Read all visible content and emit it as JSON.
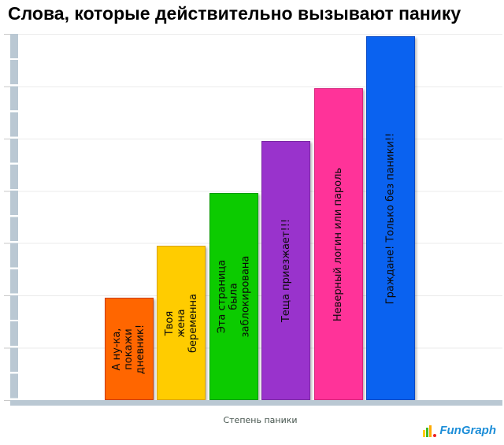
{
  "title": "Слова, которые действительно вызывают панику",
  "xlabel": "Степень паники",
  "logo": {
    "text": "FunGraph",
    "icon": "bar-chart-icon",
    "text_color": "#1d8ed8"
  },
  "palette": {
    "axis_wall": "#bac8d3",
    "gridline": "#ebebeb",
    "background": "#ffffff",
    "title_color": "#000000",
    "bar_label_color": "#0a0a0a"
  },
  "chart_data": {
    "type": "bar",
    "title": "Слова, которые действительно вызывают панику",
    "xlabel": "Степень паники",
    "ylabel": "",
    "categories": [
      "А ну-ка, покажи дневник!",
      "Твоя жена беременна",
      "Эта страница была заблокирована",
      "Теща приезжает!!!",
      "Неверный логин или пароль",
      "Граждане! Только без паники!!"
    ],
    "label_lines": [
      [
        "А ну-ка,",
        "покажи",
        "дневник!"
      ],
      [
        "Твоя",
        "жена",
        "беременна"
      ],
      [
        "Эта страница",
        "была",
        "заблокирована"
      ],
      [
        "Теща приезжает!!!"
      ],
      [
        "Неверный логин или пароль"
      ],
      [
        "Граждане! Только без паники!!"
      ]
    ],
    "values": [
      2,
      3,
      4,
      5,
      6,
      7
    ],
    "ylim": [
      0,
      7
    ],
    "grid": true,
    "legend": "none",
    "label_rotation_deg": -90,
    "colors": [
      "#ff6600",
      "#ffcc00",
      "#0ccb00",
      "#9933cc",
      "#ff3399",
      "#0a62f0"
    ],
    "border_colors": [
      "#cc3b00",
      "#d9a300",
      "#0a9c00",
      "#7a28a3",
      "#d6237c",
      "#0748c4"
    ]
  }
}
